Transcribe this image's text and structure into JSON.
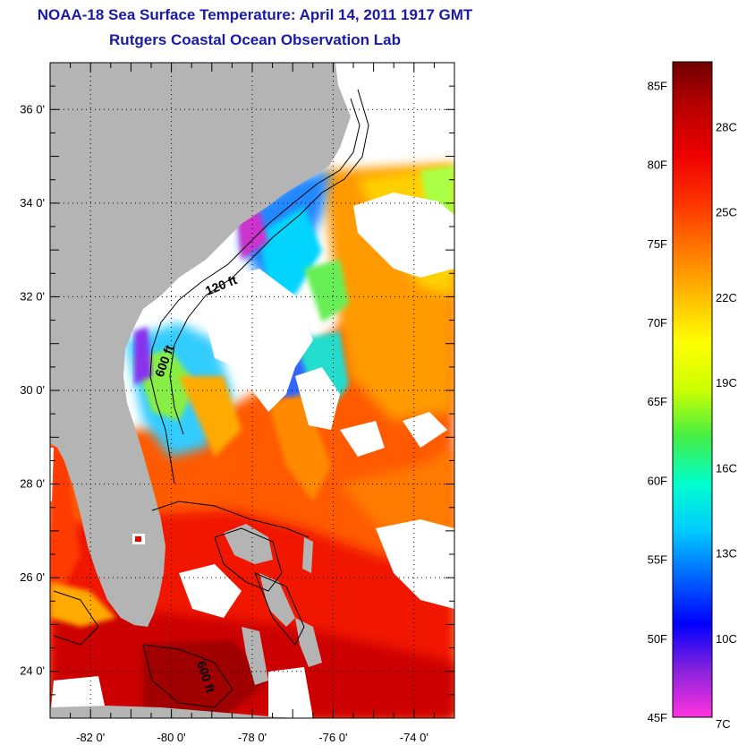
{
  "header": {
    "title": "NOAA-18 Sea Surface Temperature:  April 14, 2011 1917 GMT",
    "subtitle": "Rutgers Coastal Ocean Observation Lab"
  },
  "map": {
    "lat_labels": [
      "36 0'",
      "34 0'",
      "32 0'",
      "30 0'",
      "28 0'",
      "26 0'",
      "24 0'"
    ],
    "lon_labels": [
      "-82 0'",
      "-80 0'",
      "-78 0'",
      "-76 0'",
      "-74 0'"
    ],
    "lat_range": [
      23,
      37
    ],
    "lon_range": [
      -83,
      -73
    ],
    "lat_ticks": [
      36,
      34,
      32,
      30,
      28,
      26,
      24
    ],
    "lon_ticks": [
      -82,
      -80,
      -78,
      -76,
      -74
    ],
    "contour_labels": [
      "120 ft",
      "600 ft",
      "600 ft"
    ],
    "colors": {
      "land": "#b4b4b4",
      "cloud": "#ffffff",
      "contour": "#000000"
    }
  },
  "colorbar": {
    "f_labels": [
      "85F",
      "80F",
      "75F",
      "70F",
      "65F",
      "60F",
      "55F",
      "50F",
      "45F"
    ],
    "c_labels": [
      "28C",
      "25C",
      "22C",
      "19C",
      "16C",
      "13C",
      "10C",
      "7C"
    ],
    "f_values": [
      85,
      80,
      75,
      70,
      65,
      60,
      55,
      50,
      45
    ],
    "c_values": [
      28,
      25,
      22,
      19,
      16,
      13,
      10,
      7
    ],
    "range_f": [
      45,
      86.5
    ],
    "stops": [
      "#ff33dd",
      "#8822dd",
      "#0000ff",
      "#0066ff",
      "#00ccff",
      "#00ffcc",
      "#44ee44",
      "#ccff00",
      "#ffff00",
      "#ffbb00",
      "#ff7700",
      "#ff3300",
      "#ee0000",
      "#bb0000",
      "#700000"
    ]
  }
}
